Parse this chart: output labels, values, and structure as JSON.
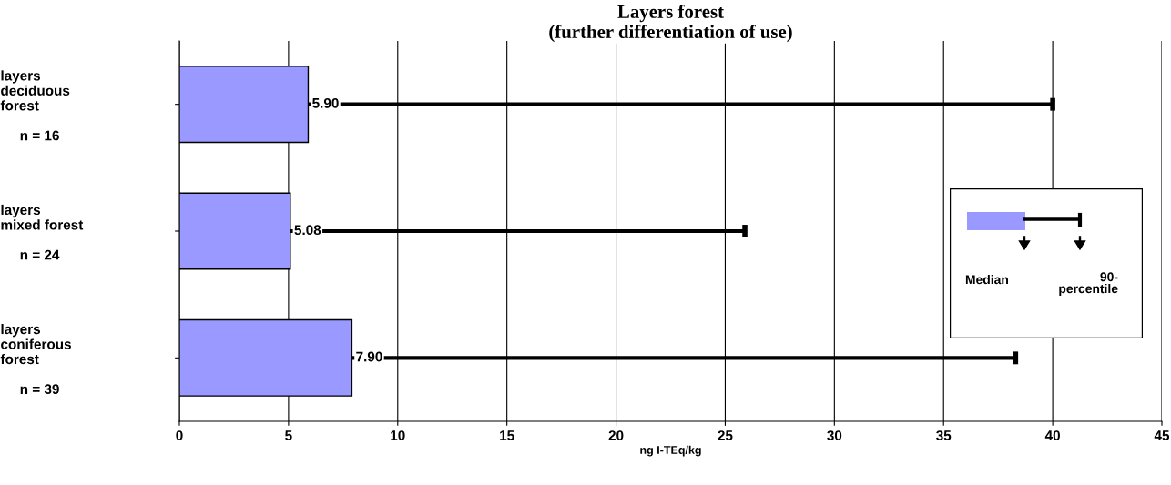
{
  "chart_data": {
    "type": "bar",
    "orientation": "horizontal",
    "title": "Layers forest\n(further differentiation of use)",
    "xlabel": "ng I-TEq/kg",
    "categories": [
      "layers\ndeciduous\nforest\n\n     n = 16",
      "layers\nmixed forest\n\n     n = 24",
      "layers\nconiferous\nforest\n\n     n = 39"
    ],
    "values": [
      5.9,
      5.08,
      7.9
    ],
    "color": "#9999ff",
    "errors": [
      [
        5.9,
        40.0
      ],
      [
        5.08,
        25.9
      ],
      [
        7.9,
        38.3
      ]
    ],
    "value_labels": [
      "5.90",
      "5.08",
      "7.90"
    ],
    "xlim": [
      0,
      45
    ],
    "xticks": [
      0,
      5,
      10,
      15,
      20,
      25,
      30,
      35,
      40,
      45
    ],
    "grid": "x",
    "annotations": [
      "Median",
      "90-\npercentile"
    ]
  }
}
